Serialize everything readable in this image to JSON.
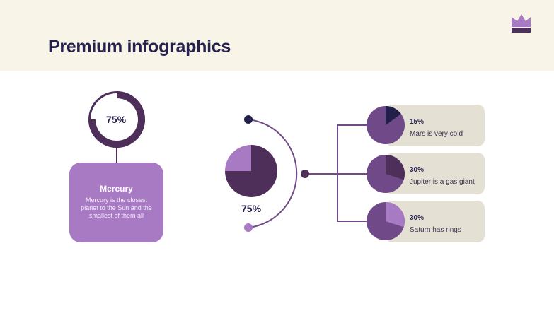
{
  "title": "Premium infographics",
  "colors": {
    "dark": "#4e2f5a",
    "light": "#a97ac4",
    "mid": "#704a88",
    "navy": "#22204a",
    "card": "#e5e0d4",
    "header": "#f8f4e8"
  },
  "logo_icon": "crown-icon",
  "donut": {
    "value": 75,
    "label": "75%"
  },
  "mercury": {
    "title": "Mercury",
    "text": "Mercury is the closest planet to the Sun and the smallest of them all"
  },
  "center_pie": {
    "value": 75,
    "label": "75%"
  },
  "items": [
    {
      "value": 15,
      "label": "15%",
      "text": "Mars is very cold"
    },
    {
      "value": 30,
      "label": "30%",
      "text": "Jupiter is a gas giant"
    },
    {
      "value": 30,
      "label": "30%",
      "text": "Saturn has rings"
    }
  ]
}
